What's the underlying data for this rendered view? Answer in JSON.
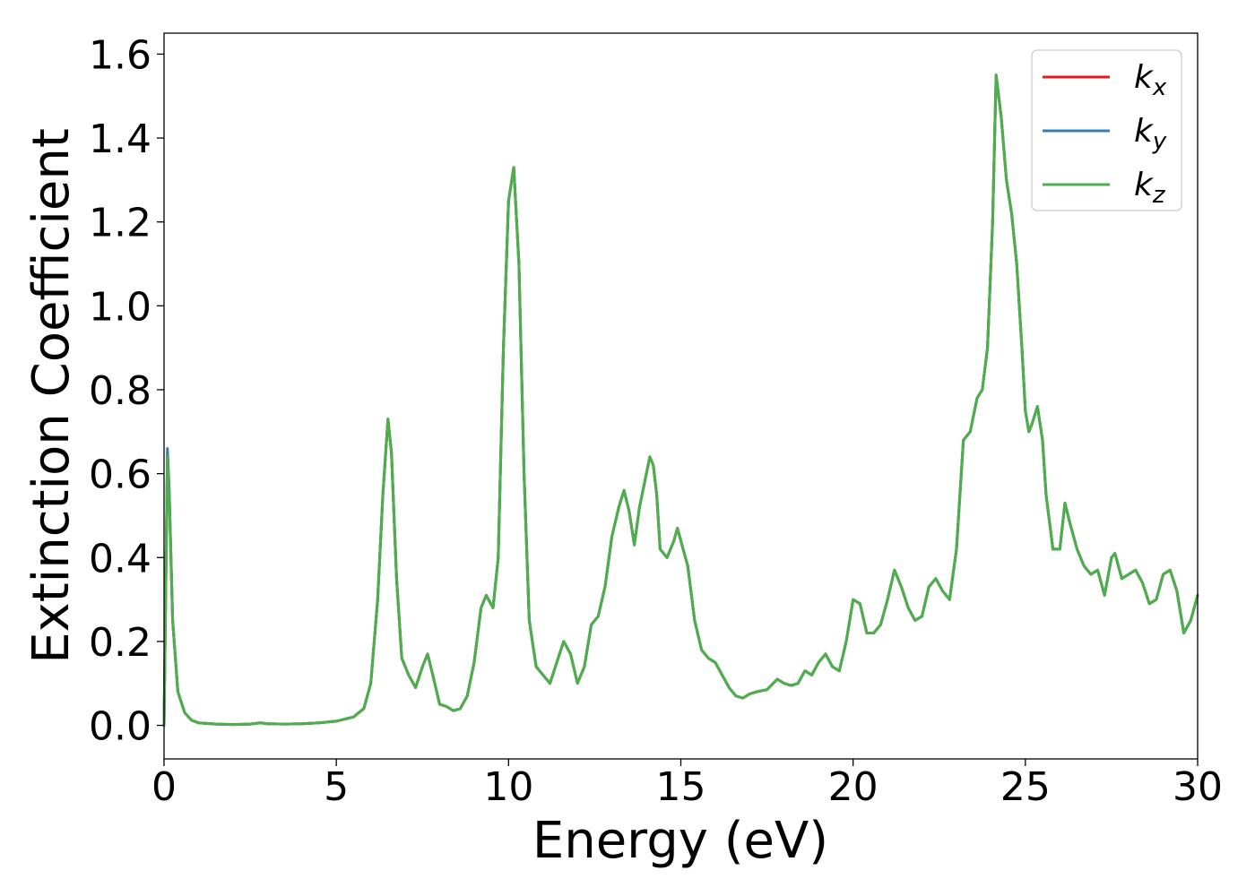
{
  "chart_data": {
    "type": "line",
    "xlabel": "Energy (eV)",
    "ylabel": "Extinction Coefficient",
    "xlim": [
      0,
      30
    ],
    "ylim": [
      -0.08,
      1.65
    ],
    "x_ticks": [
      "0",
      "5",
      "10",
      "15",
      "20",
      "25",
      "30"
    ],
    "y_ticks": [
      "0.0",
      "0.2",
      "0.4",
      "0.6",
      "0.8",
      "1.0",
      "1.2",
      "1.4",
      "1.6"
    ],
    "grid": false,
    "legend_position": "top-right",
    "series": [
      {
        "name": "k_x",
        "label_base": "k",
        "label_sub": "x",
        "color": "#e41a1c",
        "x": [
          0.0,
          0.1,
          0.15,
          0.25,
          0.4,
          0.6,
          0.8,
          1.0,
          1.5,
          2.0,
          2.5,
          2.8,
          3.0,
          3.5,
          4.0,
          4.5,
          5.0,
          5.5,
          5.8,
          6.0,
          6.2,
          6.35,
          6.5,
          6.6,
          6.75,
          6.9,
          7.1,
          7.3,
          7.5,
          7.65,
          7.8,
          8.0,
          8.2,
          8.4,
          8.6,
          8.8,
          9.0,
          9.2,
          9.35,
          9.55,
          9.7,
          9.85,
          10.0,
          10.15,
          10.3,
          10.45,
          10.6,
          10.8,
          11.0,
          11.2,
          11.4,
          11.6,
          11.8,
          12.0,
          12.2,
          12.4,
          12.6,
          12.8,
          13.0,
          13.2,
          13.35,
          13.5,
          13.65,
          13.8,
          14.0,
          14.1,
          14.2,
          14.3,
          14.4,
          14.6,
          14.8,
          14.9,
          15.0,
          15.2,
          15.4,
          15.6,
          15.8,
          16.0,
          16.2,
          16.4,
          16.6,
          16.8,
          17.0,
          17.2,
          17.5,
          17.8,
          18.0,
          18.2,
          18.4,
          18.6,
          18.8,
          19.0,
          19.2,
          19.4,
          19.6,
          19.8,
          20.0,
          20.2,
          20.4,
          20.6,
          20.8,
          21.0,
          21.2,
          21.4,
          21.6,
          21.8,
          22.0,
          22.2,
          22.4,
          22.6,
          22.8,
          23.0,
          23.2,
          23.4,
          23.6,
          23.75,
          23.9,
          24.05,
          24.15,
          24.3,
          24.45,
          24.6,
          24.75,
          24.9,
          25.0,
          25.1,
          25.2,
          25.35,
          25.5,
          25.6,
          25.8,
          26.0,
          26.15,
          26.3,
          26.5,
          26.7,
          26.9,
          27.1,
          27.3,
          27.5,
          27.6,
          27.8,
          28.0,
          28.2,
          28.4,
          28.6,
          28.8,
          29.0,
          29.2,
          29.4,
          29.6,
          29.8,
          30.0
        ],
        "y": [
          0.0,
          0.65,
          0.55,
          0.25,
          0.08,
          0.03,
          0.012,
          0.006,
          0.003,
          0.002,
          0.003,
          0.006,
          0.004,
          0.003,
          0.004,
          0.006,
          0.01,
          0.02,
          0.04,
          0.1,
          0.3,
          0.55,
          0.73,
          0.65,
          0.35,
          0.16,
          0.12,
          0.09,
          0.14,
          0.17,
          0.12,
          0.05,
          0.045,
          0.035,
          0.04,
          0.07,
          0.15,
          0.28,
          0.31,
          0.28,
          0.4,
          0.9,
          1.25,
          1.33,
          1.1,
          0.6,
          0.25,
          0.14,
          0.12,
          0.1,
          0.15,
          0.2,
          0.17,
          0.1,
          0.14,
          0.24,
          0.26,
          0.33,
          0.45,
          0.52,
          0.56,
          0.51,
          0.43,
          0.52,
          0.6,
          0.64,
          0.62,
          0.55,
          0.42,
          0.4,
          0.44,
          0.47,
          0.44,
          0.38,
          0.25,
          0.18,
          0.16,
          0.15,
          0.12,
          0.09,
          0.07,
          0.065,
          0.075,
          0.08,
          0.085,
          0.11,
          0.1,
          0.095,
          0.1,
          0.13,
          0.12,
          0.15,
          0.17,
          0.14,
          0.13,
          0.2,
          0.3,
          0.29,
          0.22,
          0.22,
          0.24,
          0.3,
          0.37,
          0.33,
          0.28,
          0.25,
          0.26,
          0.33,
          0.35,
          0.32,
          0.3,
          0.42,
          0.68,
          0.7,
          0.78,
          0.8,
          0.9,
          1.2,
          1.55,
          1.45,
          1.3,
          1.22,
          1.1,
          0.9,
          0.75,
          0.7,
          0.72,
          0.76,
          0.68,
          0.55,
          0.42,
          0.42,
          0.53,
          0.48,
          0.42,
          0.38,
          0.36,
          0.37,
          0.31,
          0.4,
          0.41,
          0.35,
          0.36,
          0.37,
          0.34,
          0.29,
          0.3,
          0.36,
          0.37,
          0.32,
          0.22,
          0.25,
          0.31
        ]
      },
      {
        "name": "k_y",
        "label_base": "k",
        "label_sub": "y",
        "color": "#377eb8",
        "x": [
          0.0,
          0.1,
          0.15,
          0.25,
          0.4,
          0.6,
          0.8,
          1.0,
          1.5,
          2.0,
          2.5,
          2.8,
          3.0,
          3.5,
          4.0,
          4.5,
          5.0,
          5.5,
          5.8,
          6.0,
          6.2,
          6.35,
          6.5,
          6.6,
          6.75,
          6.9,
          7.1,
          7.3,
          7.5,
          7.65,
          7.8,
          8.0,
          8.2,
          8.4,
          8.6,
          8.8,
          9.0,
          9.2,
          9.35,
          9.55,
          9.7,
          9.85,
          10.0,
          10.15,
          10.3,
          10.45,
          10.6,
          10.8,
          11.0,
          11.2,
          11.4,
          11.6,
          11.8,
          12.0,
          12.2,
          12.4,
          12.6,
          12.8,
          13.0,
          13.2,
          13.35,
          13.5,
          13.65,
          13.8,
          14.0,
          14.1,
          14.2,
          14.3,
          14.4,
          14.6,
          14.8,
          14.9,
          15.0,
          15.2,
          15.4,
          15.6,
          15.8,
          16.0,
          16.2,
          16.4,
          16.6,
          16.8,
          17.0,
          17.2,
          17.5,
          17.8,
          18.0,
          18.2,
          18.4,
          18.6,
          18.8,
          19.0,
          19.2,
          19.4,
          19.6,
          19.8,
          20.0,
          20.2,
          20.4,
          20.6,
          20.8,
          21.0,
          21.2,
          21.4,
          21.6,
          21.8,
          22.0,
          22.2,
          22.4,
          22.6,
          22.8,
          23.0,
          23.2,
          23.4,
          23.6,
          23.75,
          23.9,
          24.05,
          24.15,
          24.3,
          24.45,
          24.6,
          24.75,
          24.9,
          25.0,
          25.1,
          25.2,
          25.35,
          25.5,
          25.6,
          25.8,
          26.0,
          26.15,
          26.3,
          26.5,
          26.7,
          26.9,
          27.1,
          27.3,
          27.5,
          27.6,
          27.8,
          28.0,
          28.2,
          28.4,
          28.6,
          28.8,
          29.0,
          29.2,
          29.4,
          29.6,
          29.8,
          30.0
        ],
        "y": [
          0.0,
          0.66,
          0.56,
          0.25,
          0.08,
          0.03,
          0.012,
          0.006,
          0.003,
          0.002,
          0.003,
          0.006,
          0.004,
          0.003,
          0.004,
          0.006,
          0.01,
          0.02,
          0.04,
          0.1,
          0.3,
          0.55,
          0.73,
          0.65,
          0.35,
          0.16,
          0.12,
          0.09,
          0.14,
          0.17,
          0.12,
          0.05,
          0.045,
          0.035,
          0.04,
          0.07,
          0.15,
          0.28,
          0.31,
          0.28,
          0.4,
          0.9,
          1.25,
          1.33,
          1.1,
          0.6,
          0.25,
          0.14,
          0.12,
          0.1,
          0.15,
          0.2,
          0.17,
          0.1,
          0.14,
          0.24,
          0.26,
          0.33,
          0.45,
          0.52,
          0.56,
          0.51,
          0.43,
          0.52,
          0.6,
          0.64,
          0.62,
          0.55,
          0.42,
          0.4,
          0.44,
          0.47,
          0.44,
          0.38,
          0.25,
          0.18,
          0.16,
          0.15,
          0.12,
          0.09,
          0.07,
          0.065,
          0.075,
          0.08,
          0.085,
          0.11,
          0.1,
          0.095,
          0.1,
          0.13,
          0.12,
          0.15,
          0.17,
          0.14,
          0.13,
          0.2,
          0.3,
          0.29,
          0.22,
          0.22,
          0.24,
          0.3,
          0.37,
          0.33,
          0.28,
          0.25,
          0.26,
          0.33,
          0.35,
          0.32,
          0.3,
          0.42,
          0.68,
          0.7,
          0.78,
          0.8,
          0.9,
          1.2,
          1.55,
          1.45,
          1.3,
          1.22,
          1.1,
          0.9,
          0.75,
          0.7,
          0.72,
          0.76,
          0.68,
          0.55,
          0.42,
          0.42,
          0.53,
          0.48,
          0.42,
          0.38,
          0.36,
          0.37,
          0.31,
          0.4,
          0.41,
          0.35,
          0.36,
          0.37,
          0.34,
          0.29,
          0.3,
          0.36,
          0.37,
          0.32,
          0.22,
          0.25,
          0.31
        ]
      },
      {
        "name": "k_z",
        "label_base": "k",
        "label_sub": "z",
        "color": "#4daf4a",
        "x": [
          0.0,
          0.1,
          0.15,
          0.25,
          0.4,
          0.6,
          0.8,
          1.0,
          1.5,
          2.0,
          2.5,
          2.8,
          3.0,
          3.5,
          4.0,
          4.5,
          5.0,
          5.5,
          5.8,
          6.0,
          6.2,
          6.35,
          6.5,
          6.6,
          6.75,
          6.9,
          7.1,
          7.3,
          7.5,
          7.65,
          7.8,
          8.0,
          8.2,
          8.4,
          8.6,
          8.8,
          9.0,
          9.2,
          9.35,
          9.55,
          9.7,
          9.85,
          10.0,
          10.15,
          10.3,
          10.45,
          10.6,
          10.8,
          11.0,
          11.2,
          11.4,
          11.6,
          11.8,
          12.0,
          12.2,
          12.4,
          12.6,
          12.8,
          13.0,
          13.2,
          13.35,
          13.5,
          13.65,
          13.8,
          14.0,
          14.1,
          14.2,
          14.3,
          14.4,
          14.6,
          14.8,
          14.9,
          15.0,
          15.2,
          15.4,
          15.6,
          15.8,
          16.0,
          16.2,
          16.4,
          16.6,
          16.8,
          17.0,
          17.2,
          17.5,
          17.8,
          18.0,
          18.2,
          18.4,
          18.6,
          18.8,
          19.0,
          19.2,
          19.4,
          19.6,
          19.8,
          20.0,
          20.2,
          20.4,
          20.6,
          20.8,
          21.0,
          21.2,
          21.4,
          21.6,
          21.8,
          22.0,
          22.2,
          22.4,
          22.6,
          22.8,
          23.0,
          23.2,
          23.4,
          23.6,
          23.75,
          23.9,
          24.05,
          24.15,
          24.3,
          24.45,
          24.6,
          24.75,
          24.9,
          25.0,
          25.1,
          25.2,
          25.35,
          25.5,
          25.6,
          25.8,
          26.0,
          26.15,
          26.3,
          26.5,
          26.7,
          26.9,
          27.1,
          27.3,
          27.5,
          27.6,
          27.8,
          28.0,
          28.2,
          28.4,
          28.6,
          28.8,
          29.0,
          29.2,
          29.4,
          29.6,
          29.8,
          30.0
        ],
        "y": [
          0.0,
          0.64,
          0.54,
          0.25,
          0.08,
          0.03,
          0.012,
          0.006,
          0.003,
          0.002,
          0.003,
          0.006,
          0.004,
          0.003,
          0.004,
          0.006,
          0.01,
          0.02,
          0.04,
          0.1,
          0.3,
          0.55,
          0.73,
          0.65,
          0.35,
          0.16,
          0.12,
          0.09,
          0.14,
          0.17,
          0.12,
          0.05,
          0.045,
          0.035,
          0.04,
          0.07,
          0.15,
          0.28,
          0.31,
          0.28,
          0.4,
          0.9,
          1.25,
          1.33,
          1.1,
          0.6,
          0.25,
          0.14,
          0.12,
          0.1,
          0.15,
          0.2,
          0.17,
          0.1,
          0.14,
          0.24,
          0.26,
          0.33,
          0.45,
          0.52,
          0.56,
          0.51,
          0.43,
          0.52,
          0.6,
          0.64,
          0.62,
          0.55,
          0.42,
          0.4,
          0.44,
          0.47,
          0.44,
          0.38,
          0.25,
          0.18,
          0.16,
          0.15,
          0.12,
          0.09,
          0.07,
          0.065,
          0.075,
          0.08,
          0.085,
          0.11,
          0.1,
          0.095,
          0.1,
          0.13,
          0.12,
          0.15,
          0.17,
          0.14,
          0.13,
          0.2,
          0.3,
          0.29,
          0.22,
          0.22,
          0.24,
          0.3,
          0.37,
          0.33,
          0.28,
          0.25,
          0.26,
          0.33,
          0.35,
          0.32,
          0.3,
          0.42,
          0.68,
          0.7,
          0.78,
          0.8,
          0.9,
          1.2,
          1.55,
          1.45,
          1.3,
          1.22,
          1.1,
          0.9,
          0.75,
          0.7,
          0.72,
          0.76,
          0.68,
          0.55,
          0.42,
          0.42,
          0.53,
          0.48,
          0.42,
          0.38,
          0.36,
          0.37,
          0.31,
          0.4,
          0.41,
          0.35,
          0.36,
          0.37,
          0.34,
          0.29,
          0.3,
          0.36,
          0.37,
          0.32,
          0.22,
          0.25,
          0.31
        ]
      }
    ]
  }
}
